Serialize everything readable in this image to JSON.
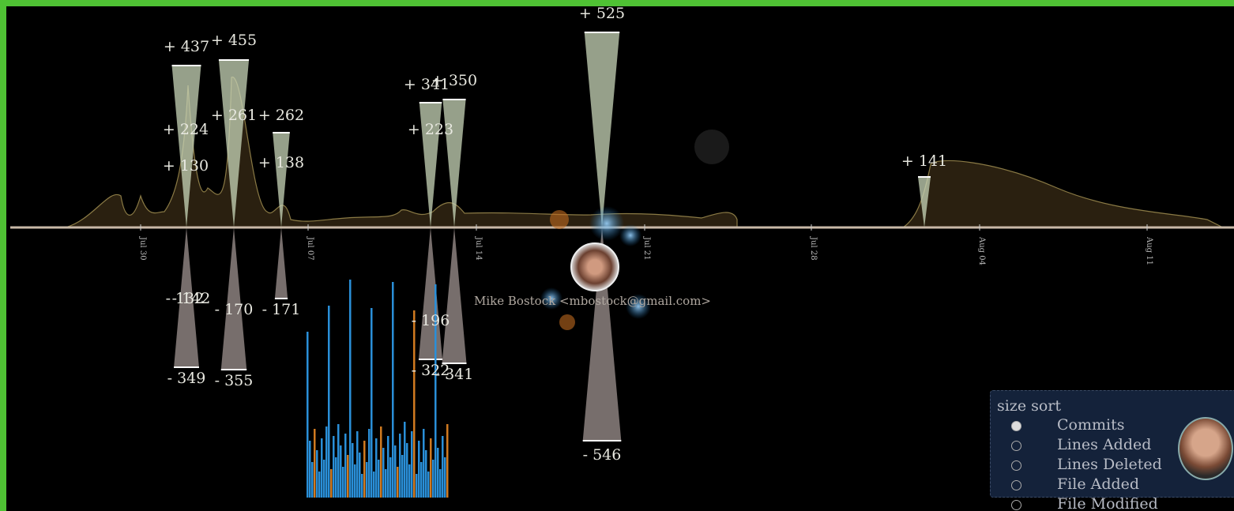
{
  "timeline": {
    "date_labels": [
      "Jul 30",
      "Jul 07",
      "Jul 14",
      "Jul 21",
      "Jul 28",
      "Aug 04",
      "Aug 11"
    ]
  },
  "additions": [
    "+ 437",
    "+ 455",
    "+ 224",
    "+ 130",
    "+ 261",
    "+ 262",
    "+ 138",
    "+ 341",
    "+ 350",
    "+ 223",
    "+ 525",
    "+ 141"
  ],
  "deletions": [
    "- 132",
    "- 142",
    "- 170",
    "- 171",
    "- 349",
    "- 355",
    "- 196",
    "- 322",
    "- 341",
    "- 546"
  ],
  "author": "Mike Bostock <mbostock@gmail.com>",
  "panel": {
    "title": "size sort",
    "options": [
      "Commits",
      "Lines Added",
      "Lines Deleted",
      "File Added",
      "File Modified"
    ]
  }
}
